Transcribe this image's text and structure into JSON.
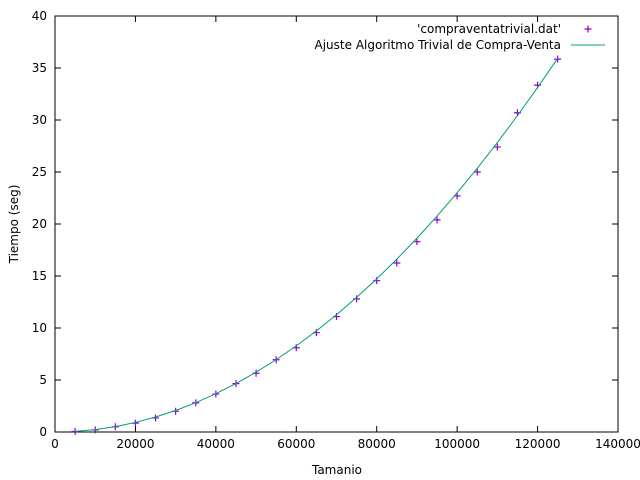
{
  "chart_data": {
    "type": "scatter",
    "title": "",
    "xlabel": "Tamanio",
    "ylabel": "Tiempo (seg)",
    "xlim": [
      0,
      140000
    ],
    "ylim": [
      0,
      40
    ],
    "x_ticks": [
      0,
      20000,
      40000,
      60000,
      80000,
      100000,
      120000,
      140000
    ],
    "y_ticks": [
      0,
      5,
      10,
      15,
      20,
      25,
      30,
      35,
      40
    ],
    "grid": false,
    "legend_position": "top-right",
    "series": [
      {
        "name": "'compraventatrivial.dat'",
        "kind": "points",
        "marker": "plus",
        "color": "#9400d3",
        "x": [
          5000,
          10000,
          15000,
          20000,
          25000,
          30000,
          35000,
          40000,
          45000,
          50000,
          55000,
          60000,
          65000,
          70000,
          75000,
          80000,
          85000,
          90000,
          95000,
          100000,
          105000,
          110000,
          115000,
          120000,
          125000
        ],
        "y": [
          0.05,
          0.2,
          0.5,
          0.85,
          1.35,
          2.0,
          2.8,
          3.65,
          4.65,
          5.65,
          6.95,
          8.1,
          9.55,
          11.1,
          12.8,
          14.55,
          16.25,
          18.3,
          20.4,
          22.7,
          25.0,
          27.4,
          30.7,
          33.35,
          35.85
        ]
      },
      {
        "name": "Ajuste Algoritmo Trivial de Compra-Venta",
        "kind": "line",
        "color": "#009e73",
        "x": [
          5000,
          10000,
          15000,
          20000,
          25000,
          30000,
          35000,
          40000,
          45000,
          50000,
          55000,
          60000,
          65000,
          70000,
          75000,
          80000,
          85000,
          90000,
          95000,
          100000,
          105000,
          110000,
          115000,
          120000,
          125000
        ],
        "y": [
          0.06,
          0.23,
          0.52,
          0.92,
          1.44,
          2.07,
          2.82,
          3.68,
          4.66,
          5.75,
          6.96,
          8.28,
          9.72,
          11.27,
          12.94,
          14.72,
          16.62,
          18.63,
          20.76,
          23.0,
          25.36,
          27.83,
          30.42,
          33.12,
          35.94
        ]
      }
    ]
  }
}
